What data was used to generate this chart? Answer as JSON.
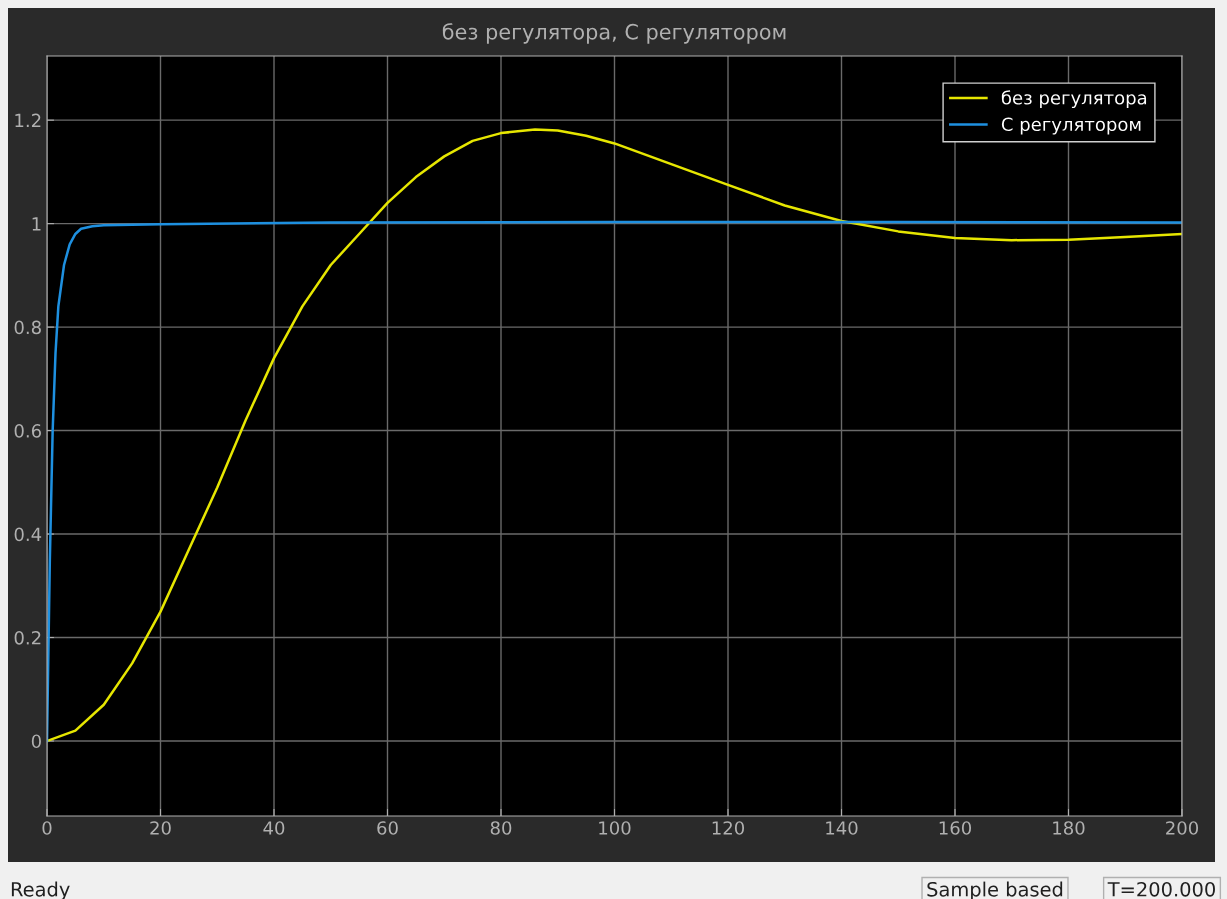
{
  "chart_data": {
    "type": "line",
    "title": "без регулятора, С регулятором",
    "series": [
      {
        "name": "без регулятора",
        "color": "#e6e600",
        "x": [
          0,
          5,
          10,
          15,
          20,
          25,
          30,
          35,
          40,
          45,
          50,
          55,
          60,
          65,
          70,
          75,
          80,
          86,
          90,
          95,
          100,
          110,
          120,
          130,
          140,
          150,
          160,
          170,
          180,
          190,
          200
        ],
        "values": [
          0,
          0.02,
          0.07,
          0.15,
          0.25,
          0.37,
          0.49,
          0.62,
          0.74,
          0.84,
          0.92,
          0.98,
          1.04,
          1.09,
          1.13,
          1.16,
          1.175,
          1.182,
          1.18,
          1.17,
          1.155,
          1.115,
          1.075,
          1.035,
          1.005,
          0.985,
          0.972,
          0.968,
          0.969,
          0.974,
          0.98
        ]
      },
      {
        "name": "С регулятором",
        "color": "#1e90e0",
        "x": [
          0,
          0.5,
          1,
          1.5,
          2,
          3,
          4,
          5,
          6,
          8,
          10,
          20,
          50,
          100,
          150,
          200
        ],
        "values": [
          0,
          0.35,
          0.6,
          0.75,
          0.84,
          0.92,
          0.96,
          0.98,
          0.99,
          0.995,
          0.997,
          0.999,
          1.002,
          1.003,
          1.003,
          1.002
        ]
      }
    ],
    "xlim": [
      0,
      200
    ],
    "xticks": [
      0,
      20,
      40,
      60,
      80,
      100,
      120,
      140,
      160,
      180,
      200
    ],
    "ylim": [
      -0.145,
      1.324
    ],
    "yticks": [
      0,
      0.2,
      0.4,
      0.6,
      0.8,
      1,
      1.2
    ],
    "grid": true,
    "legend": "top right",
    "marker": "none",
    "line_style": "solid",
    "annotations": [
      "Ready",
      "Sample based",
      "T=200.000"
    ]
  }
}
